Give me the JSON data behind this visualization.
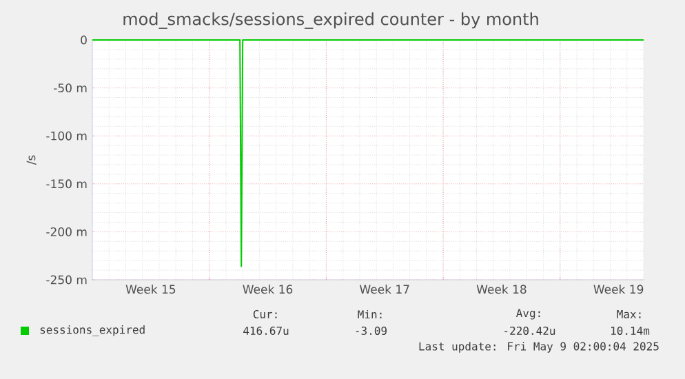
{
  "chart_data": {
    "type": "line",
    "title": "mod_smacks/sessions_expired counter - by month",
    "ylabel": "/s",
    "xlim": [
      "2025-04-07",
      "2025-05-10"
    ],
    "ylim": [
      -250,
      0
    ],
    "yticks": [
      0,
      {
        "value": -50,
        "label": "-50 m"
      },
      {
        "value": -100,
        "label": "-100 m"
      },
      {
        "value": -150,
        "label": "-150 m"
      },
      {
        "value": -200,
        "label": "-200 m"
      },
      {
        "value": -250,
        "label": "-250 m"
      }
    ],
    "xticks": [
      {
        "value": "2025-04-10T12:00",
        "label": "Week 15"
      },
      {
        "value": "2025-04-14",
        "label": null
      },
      {
        "value": "2025-04-17T12:00",
        "label": "Week 16"
      },
      {
        "value": "2025-04-21",
        "label": null
      },
      {
        "value": "2025-04-24T12:00",
        "label": "Week 17"
      },
      {
        "value": "2025-04-28",
        "label": null
      },
      {
        "value": "2025-05-01T12:00",
        "label": "Week 18"
      },
      {
        "value": "2025-05-05",
        "label": null
      },
      {
        "value": "2025-05-08T12:00",
        "label": "Week 19"
      }
    ],
    "grid": true,
    "legend": "bottom left",
    "series": [
      {
        "name": "sessions_expired",
        "color": "#00cc00",
        "x": [
          "2025-04-07",
          "2025-04-15T20:00",
          "2025-04-15T22:00",
          "2025-04-16T00:00",
          "2025-05-10"
        ],
        "values": [
          0,
          0,
          -236,
          0,
          0
        ]
      }
    ],
    "annotations": [
      "Cur:",
      "416.67u",
      "Min:",
      "-3.09",
      "Avg:",
      "-220.42u",
      "Max:",
      "10.14m",
      "Last update: Fri May  9 02:00:04 2025"
    ]
  }
}
